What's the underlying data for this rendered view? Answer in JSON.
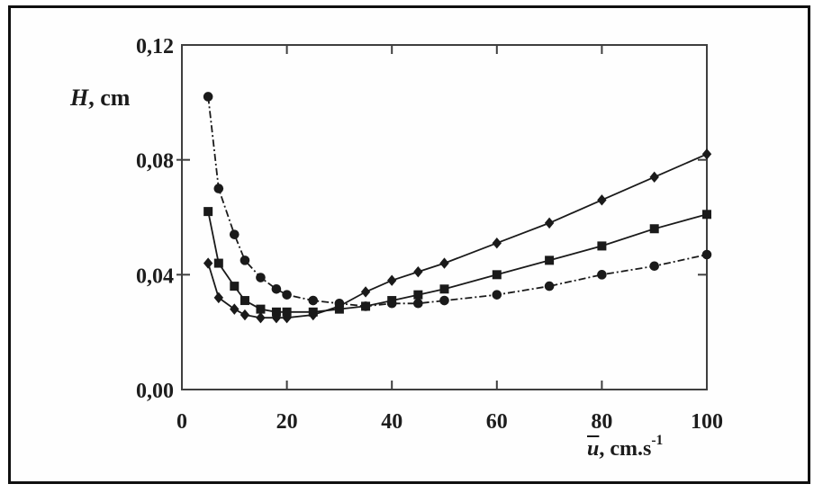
{
  "figure": {
    "background": "#ffffff",
    "border_color": "#101010"
  },
  "chart_data": {
    "type": "line",
    "title": "",
    "xlabel": "u(bar), cm.s^-1",
    "ylabel": "H, cm",
    "ylabel_parts": {
      "var": "H",
      "rest": ", cm"
    },
    "xlabel_parts": {
      "var": "u",
      "rest": ", cm.s",
      "sup": "-1"
    },
    "xlim": [
      0,
      100
    ],
    "ylim": [
      0,
      0.12
    ],
    "x_ticks": [
      0,
      20,
      40,
      60,
      80,
      100
    ],
    "x_tick_labels": [
      "0",
      "20",
      "40",
      "60",
      "80",
      "100"
    ],
    "y_ticks": [
      0,
      0.04,
      0.08,
      0.12
    ],
    "y_tick_labels": [
      "0,00",
      "0,04",
      "0,08",
      "0,12"
    ],
    "grid": false,
    "legend": "none",
    "axis_color": "#3f3f3f",
    "ink_color": "#1a1a1a",
    "x": [
      5,
      7,
      10,
      12,
      15,
      18,
      20,
      25,
      30,
      35,
      40,
      45,
      50,
      60,
      70,
      80,
      90,
      100
    ],
    "series": [
      {
        "name": "circle-series",
        "marker": "circle",
        "line": "dash-dot",
        "color": "#1a1a1a",
        "values": [
          0.102,
          0.07,
          0.054,
          0.045,
          0.039,
          0.035,
          0.033,
          0.031,
          0.03,
          0.029,
          0.03,
          0.03,
          0.031,
          0.033,
          0.036,
          0.04,
          0.043,
          0.047
        ]
      },
      {
        "name": "square-series",
        "marker": "square",
        "line": "solid",
        "color": "#1a1a1a",
        "values": [
          0.062,
          0.044,
          0.036,
          0.031,
          0.028,
          0.027,
          0.027,
          0.027,
          0.028,
          0.029,
          0.031,
          0.033,
          0.035,
          0.04,
          0.045,
          0.05,
          0.056,
          0.061
        ]
      },
      {
        "name": "diamond-series",
        "marker": "diamond",
        "line": "solid",
        "color": "#1a1a1a",
        "values": [
          0.044,
          0.032,
          0.028,
          0.026,
          0.025,
          0.025,
          0.025,
          0.026,
          0.029,
          0.034,
          0.038,
          0.041,
          0.044,
          0.051,
          0.058,
          0.066,
          0.074,
          0.082
        ]
      }
    ]
  }
}
